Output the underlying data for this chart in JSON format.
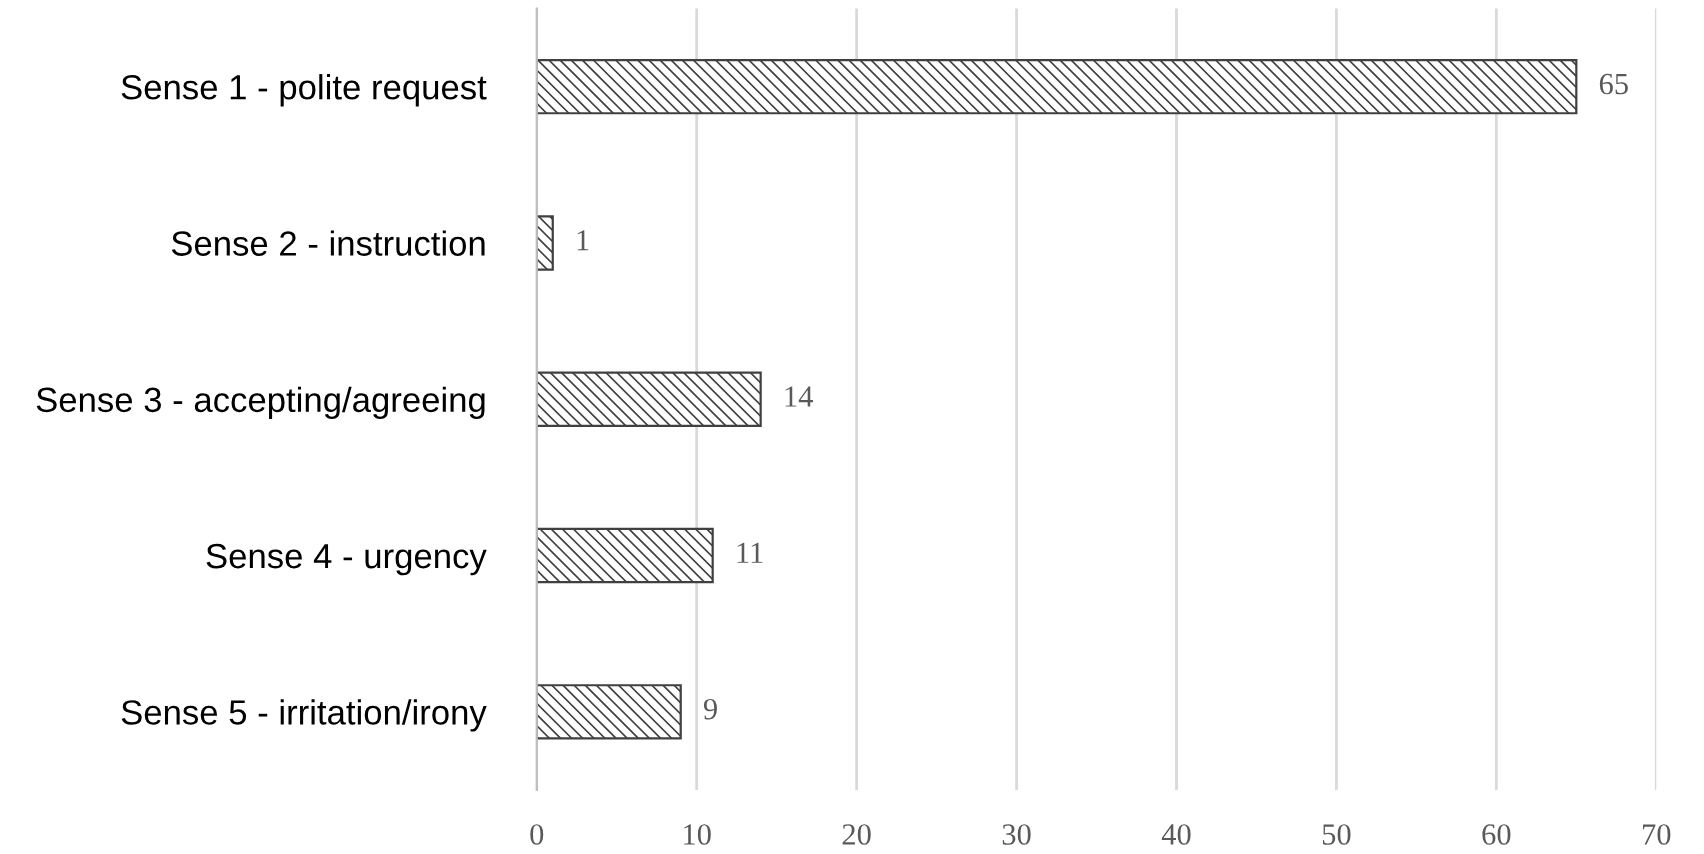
{
  "chart_data": {
    "type": "bar",
    "orientation": "horizontal",
    "categories": [
      "Sense 1 - polite request",
      "Sense 2 - instruction",
      "Sense 3 - accepting/agreeing",
      "Sense 4 - urgency",
      "Sense 5 - irritation/irony"
    ],
    "values": [
      65,
      1,
      14,
      11,
      9
    ],
    "color": "#404040",
    "xlim": [
      0,
      70
    ],
    "xticks": [
      0,
      10,
      20,
      30,
      40,
      50,
      60,
      70
    ],
    "grid": "x",
    "data_labels": true
  }
}
